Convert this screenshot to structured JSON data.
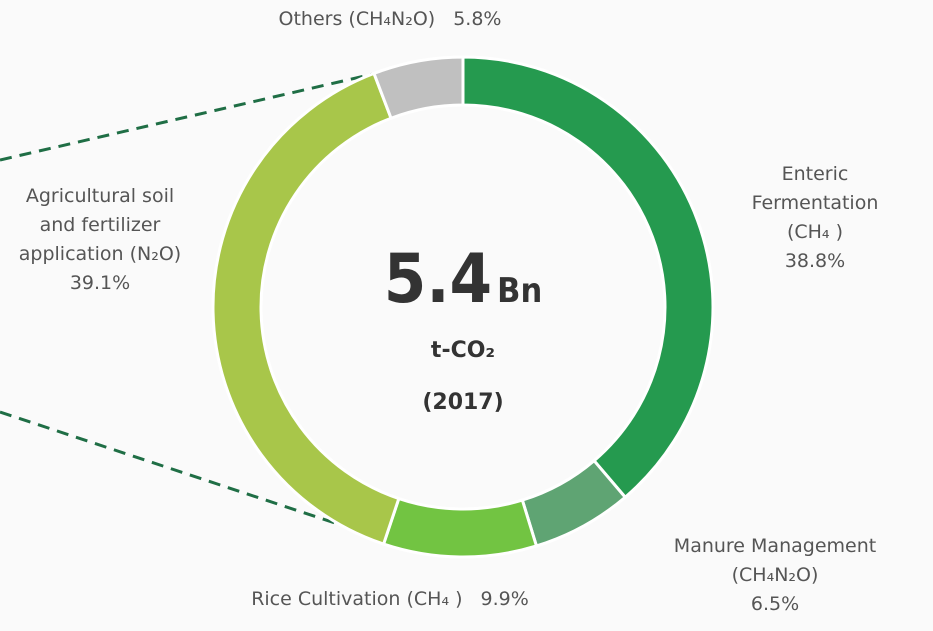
{
  "chart_data": {
    "type": "donut",
    "categories": [
      "Enteric Fermentation (CH₄ )",
      "Manure Management (CH₄N₂O)",
      "Rice Cultivation (CH₄ )",
      "Agricultural soil and fertilizer application (N₂O)",
      "Others (CH₄N₂O)"
    ],
    "values": [
      38.8,
      6.5,
      9.9,
      39.1,
      5.8
    ],
    "value_labels": [
      "38.8%",
      "6.5%",
      "9.9%",
      "39.1%",
      "5.8%"
    ],
    "colors": [
      "#259a4f",
      "#5fa473",
      "#72c442",
      "#a8c64a",
      "#c0c0c0"
    ],
    "center_value": "5.4",
    "center_unit": "Bn",
    "center_label": "t-CO₂",
    "center_year": "(2017)"
  }
}
